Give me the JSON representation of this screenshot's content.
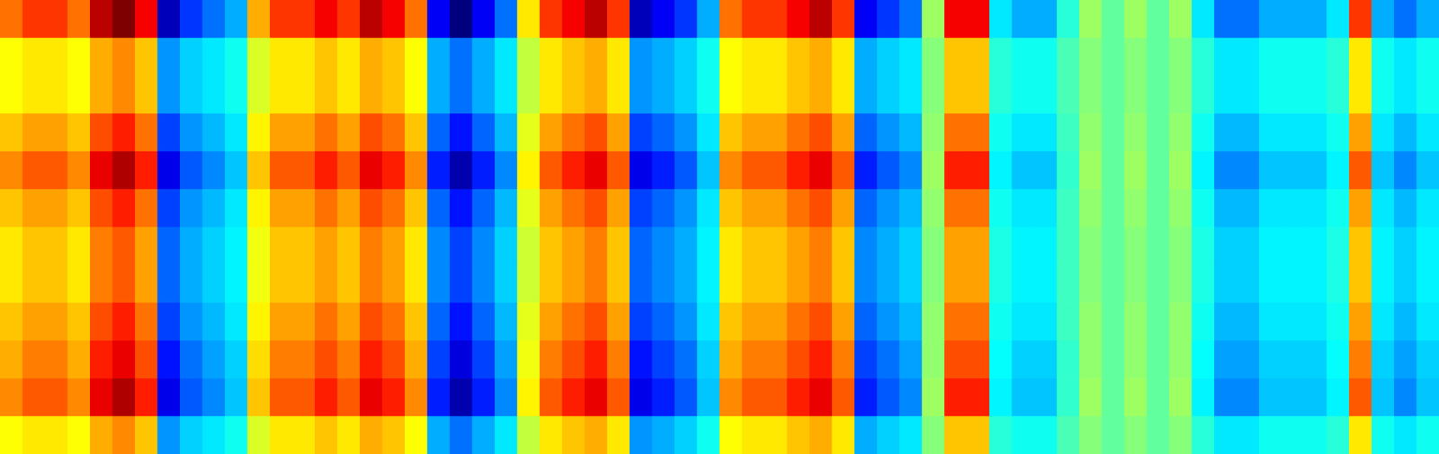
{
  "chart_data": {
    "type": "heatmap",
    "tick_labels": false,
    "values": [
      [
        75,
        80,
        80,
        75,
        90,
        95,
        85,
        15,
        25,
        30,
        35,
        70,
        80,
        80,
        85,
        80,
        90,
        85,
        75,
        20,
        10,
        20,
        30,
        65,
        80,
        85,
        90,
        80,
        15,
        20,
        25,
        35,
        75,
        80,
        80,
        85,
        90,
        80,
        20,
        25,
        30,
        55,
        85,
        85,
        40,
        35,
        35,
        45,
        55,
        50,
        55,
        50,
        55,
        40,
        30,
        30,
        35,
        35,
        35,
        40,
        80,
        35,
        30,
        35
      ],
      [
        63,
        65,
        65,
        63,
        70,
        73,
        68,
        33,
        38,
        40,
        43,
        60,
        65,
        65,
        68,
        65,
        70,
        68,
        63,
        35,
        30,
        35,
        40,
        58,
        65,
        68,
        70,
        65,
        33,
        35,
        38,
        43,
        63,
        65,
        65,
        68,
        70,
        65,
        35,
        38,
        40,
        53,
        68,
        68,
        45,
        43,
        43,
        48,
        53,
        50,
        53,
        50,
        53,
        45,
        40,
        40,
        43,
        43,
        43,
        45,
        65,
        43,
        40,
        43
      ],
      [
        63,
        65,
        65,
        63,
        70,
        73,
        68,
        33,
        38,
        40,
        43,
        60,
        65,
        65,
        68,
        65,
        70,
        68,
        63,
        35,
        30,
        35,
        40,
        58,
        65,
        68,
        70,
        65,
        33,
        35,
        38,
        43,
        63,
        65,
        65,
        68,
        70,
        65,
        35,
        38,
        40,
        53,
        68,
        68,
        45,
        43,
        43,
        48,
        53,
        50,
        53,
        50,
        53,
        45,
        40,
        40,
        43,
        43,
        43,
        45,
        65,
        43,
        40,
        43
      ],
      [
        68,
        71,
        71,
        68,
        78,
        82,
        75,
        26,
        33,
        36,
        40,
        64,
        71,
        71,
        75,
        71,
        78,
        75,
        68,
        29,
        22,
        29,
        36,
        61,
        71,
        75,
        78,
        71,
        26,
        29,
        33,
        40,
        68,
        71,
        71,
        75,
        78,
        71,
        29,
        33,
        36,
        54,
        75,
        75,
        43,
        40,
        40,
        47,
        54,
        50,
        54,
        50,
        54,
        43,
        36,
        36,
        40,
        40,
        40,
        43,
        71,
        40,
        36,
        40
      ],
      [
        73,
        77,
        77,
        73,
        86,
        91,
        82,
        19,
        28,
        32,
        37,
        68,
        77,
        77,
        82,
        77,
        86,
        82,
        73,
        23,
        14,
        23,
        32,
        64,
        77,
        82,
        86,
        77,
        19,
        23,
        28,
        37,
        73,
        77,
        77,
        82,
        86,
        77,
        23,
        28,
        32,
        55,
        82,
        82,
        41,
        37,
        37,
        46,
        55,
        50,
        55,
        50,
        55,
        41,
        32,
        32,
        37,
        37,
        37,
        41,
        77,
        37,
        32,
        37
      ],
      [
        68,
        71,
        71,
        68,
        78,
        82,
        75,
        26,
        33,
        36,
        40,
        64,
        71,
        71,
        75,
        71,
        78,
        75,
        68,
        29,
        22,
        29,
        36,
        61,
        71,
        75,
        78,
        71,
        26,
        29,
        33,
        40,
        68,
        71,
        71,
        75,
        78,
        71,
        29,
        33,
        36,
        54,
        75,
        75,
        43,
        40,
        40,
        47,
        54,
        50,
        54,
        50,
        54,
        43,
        36,
        36,
        40,
        40,
        40,
        43,
        71,
        40,
        36,
        40
      ],
      [
        65,
        68,
        68,
        65,
        74,
        77,
        71,
        29,
        35,
        38,
        41,
        62,
        68,
        68,
        71,
        68,
        74,
        71,
        65,
        32,
        26,
        32,
        38,
        59,
        68,
        71,
        74,
        68,
        29,
        32,
        35,
        41,
        65,
        68,
        68,
        71,
        74,
        68,
        32,
        35,
        38,
        53,
        71,
        71,
        44,
        41,
        41,
        47,
        53,
        50,
        53,
        50,
        53,
        44,
        38,
        38,
        41,
        41,
        41,
        44,
        68,
        41,
        38,
        41
      ],
      [
        65,
        68,
        68,
        65,
        74,
        77,
        71,
        29,
        35,
        38,
        41,
        62,
        68,
        68,
        71,
        68,
        74,
        71,
        65,
        32,
        26,
        32,
        38,
        59,
        68,
        71,
        74,
        68,
        29,
        32,
        35,
        41,
        65,
        68,
        68,
        71,
        74,
        68,
        32,
        35,
        38,
        53,
        71,
        71,
        44,
        41,
        41,
        47,
        53,
        50,
        53,
        50,
        53,
        44,
        38,
        38,
        41,
        41,
        41,
        44,
        68,
        41,
        38,
        41
      ],
      [
        68,
        71,
        71,
        68,
        78,
        82,
        75,
        26,
        33,
        36,
        40,
        64,
        71,
        71,
        75,
        71,
        78,
        75,
        68,
        29,
        22,
        29,
        36,
        61,
        71,
        75,
        78,
        71,
        26,
        29,
        33,
        40,
        68,
        71,
        71,
        75,
        78,
        71,
        29,
        33,
        36,
        54,
        75,
        75,
        43,
        40,
        40,
        47,
        54,
        50,
        54,
        50,
        54,
        43,
        36,
        36,
        40,
        40,
        40,
        43,
        71,
        40,
        36,
        40
      ],
      [
        70,
        74,
        74,
        70,
        82,
        86,
        78,
        22,
        30,
        34,
        38,
        66,
        74,
        74,
        78,
        74,
        82,
        78,
        70,
        26,
        18,
        26,
        34,
        62,
        74,
        78,
        82,
        74,
        22,
        26,
        30,
        38,
        70,
        74,
        74,
        78,
        82,
        74,
        26,
        30,
        34,
        54,
        78,
        78,
        42,
        38,
        38,
        46,
        54,
        50,
        54,
        50,
        54,
        42,
        34,
        34,
        38,
        38,
        38,
        42,
        74,
        38,
        34,
        38
      ],
      [
        73,
        77,
        77,
        73,
        86,
        91,
        82,
        19,
        28,
        32,
        37,
        68,
        77,
        77,
        82,
        77,
        86,
        82,
        73,
        23,
        14,
        23,
        32,
        64,
        77,
        82,
        86,
        77,
        19,
        23,
        28,
        37,
        73,
        77,
        77,
        82,
        86,
        77,
        23,
        28,
        32,
        55,
        82,
        82,
        41,
        37,
        37,
        46,
        55,
        50,
        55,
        50,
        55,
        41,
        32,
        32,
        37,
        37,
        37,
        41,
        77,
        37,
        32,
        37
      ],
      [
        63,
        65,
        65,
        63,
        70,
        73,
        68,
        33,
        38,
        40,
        43,
        60,
        65,
        65,
        68,
        65,
        70,
        68,
        63,
        35,
        30,
        35,
        40,
        58,
        65,
        68,
        70,
        65,
        33,
        35,
        38,
        43,
        63,
        65,
        65,
        68,
        70,
        65,
        35,
        38,
        40,
        53,
        68,
        68,
        45,
        43,
        43,
        48,
        53,
        50,
        53,
        50,
        53,
        45,
        40,
        40,
        43,
        43,
        43,
        45,
        65,
        43,
        40,
        43
      ]
    ]
  }
}
